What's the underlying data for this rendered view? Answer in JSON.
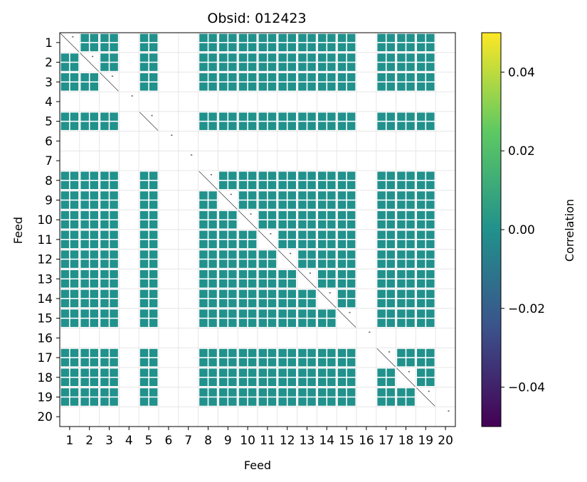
{
  "chart_data": {
    "type": "heatmap",
    "title": "Obsid: 012423",
    "xlabel": "Feed",
    "ylabel": "Feed",
    "x_ticks": [
      "1",
      "2",
      "3",
      "4",
      "5",
      "6",
      "7",
      "8",
      "9",
      "10",
      "11",
      "12",
      "13",
      "14",
      "15",
      "16",
      "17",
      "18",
      "19",
      "20"
    ],
    "y_ticks": [
      "1",
      "2",
      "3",
      "4",
      "5",
      "6",
      "7",
      "8",
      "9",
      "10",
      "11",
      "12",
      "13",
      "14",
      "15",
      "16",
      "17",
      "18",
      "19",
      "20"
    ],
    "colorbar": {
      "label": "Correlation",
      "range": [
        -0.05,
        0.05
      ],
      "ticks": [
        "−0.04",
        "−0.02",
        "0.00",
        "0.02",
        "0.04"
      ],
      "tick_values": [
        -0.04,
        -0.02,
        0.0,
        0.02,
        0.04
      ],
      "colormap_stops": [
        "#440154",
        "#3b528b",
        "#21918c",
        "#5ec962",
        "#fde725"
      ]
    },
    "cell_color": "#21918c",
    "cell_value": 0.0,
    "active_feeds": [
      1,
      2,
      3,
      5,
      8,
      9,
      10,
      11,
      12,
      13,
      14,
      15,
      17,
      18,
      19
    ],
    "inactive_feeds": [
      4,
      6,
      7,
      16,
      20
    ],
    "grid": true
  }
}
